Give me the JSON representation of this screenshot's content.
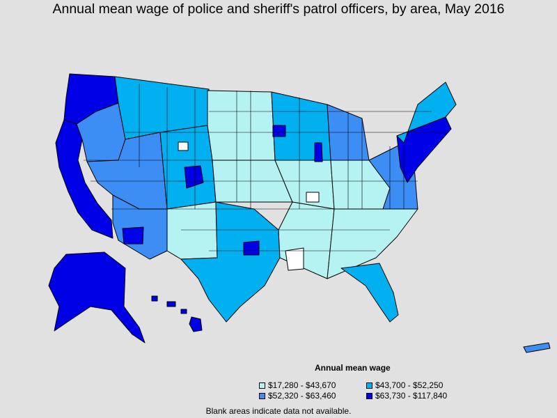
{
  "title": "Annual mean wage of police and sheriff's patrol officers, by area, May 2016",
  "legend": {
    "title": "Annual mean wage",
    "bins": [
      {
        "label": "$17,280 - $43,670",
        "color": "#b5f2f2"
      },
      {
        "label": "$43,700 - $52,250",
        "color": "#00b0f0"
      },
      {
        "label": "$52,320 - $63,460",
        "color": "#3c8ef5"
      },
      {
        "label": "$63,730 - $117,840",
        "color": "#0000e6"
      }
    ]
  },
  "note": "Blank areas indicate data not available.",
  "colors": {
    "background": "#e1e1e1",
    "blank": "#ffffff",
    "border": "#000000"
  }
}
